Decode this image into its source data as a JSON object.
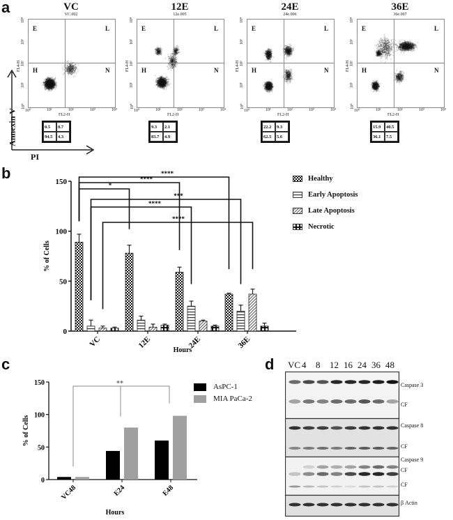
{
  "panels": {
    "a": {
      "label": "a",
      "y_axis_label": "Annexin V",
      "x_axis_label": "PI",
      "quadrant_labels": {
        "top_left": "E",
        "top_right": "L",
        "bottom_left": "H",
        "bottom_right": "N"
      },
      "axis_names": {
        "x": "FL2-H",
        "y": "FL4-H"
      },
      "ticks": [
        "10⁰",
        "10¹",
        "10²",
        "10³",
        "10⁴"
      ],
      "plots": [
        {
          "title": "VC",
          "sample": "VC.002",
          "quadrants": {
            "E": "0.5",
            "L": "0.7",
            "H": "94.5",
            "N": "4.3"
          }
        },
        {
          "title": "12E",
          "sample": "12e.005",
          "quadrants": {
            "E": "9.3",
            "L": "2.1",
            "H": "83.7",
            "N": "4.9"
          }
        },
        {
          "title": "24E",
          "sample": "24e.006",
          "quadrants": {
            "E": "22.2",
            "L": "9.3",
            "H": "62.5",
            "N": "5.6"
          }
        },
        {
          "title": "36E",
          "sample": "36e.007",
          "quadrants": {
            "E": "15.9",
            "L": "40.5",
            "H": "36.1",
            "N": "7.5"
          }
        }
      ]
    },
    "b": {
      "label": "b"
    },
    "c": {
      "label": "c"
    },
    "d": {
      "label": "d",
      "lanes": [
        "VC",
        "4",
        "8",
        "12",
        "16",
        "24",
        "36",
        "48"
      ],
      "band_labels": [
        "Caspase 3",
        "CF",
        "Caspase 8",
        "CF",
        "Caspase 9",
        "CF",
        "CF",
        "β Actin"
      ]
    }
  },
  "chart_data": [
    {
      "panel": "b",
      "type": "bar",
      "title": "",
      "xlabel": "Hours",
      "ylabel": "% of Cells",
      "categories": [
        "VC",
        "12E",
        "24E",
        "36E"
      ],
      "ylim": [
        0,
        150
      ],
      "yticks": [
        0,
        50,
        100,
        150
      ],
      "grid": false,
      "legend_position": "right",
      "series": [
        {
          "name": "Healthy",
          "values": [
            89,
            78,
            59,
            37
          ],
          "errors": [
            8,
            8,
            5,
            1
          ],
          "pattern": "checker"
        },
        {
          "name": "Early Apoptosis",
          "values": [
            5,
            11,
            25,
            20
          ],
          "errors": [
            6,
            4,
            5,
            6
          ],
          "pattern": "horizontal-stripes"
        },
        {
          "name": "Late Apoptosis",
          "values": [
            3,
            4,
            10,
            37
          ],
          "errors": [
            2,
            3,
            1,
            5
          ],
          "pattern": "diagonal-stripes"
        },
        {
          "name": "Necrotic",
          "values": [
            3,
            6,
            5,
            5
          ],
          "errors": [
            1,
            1,
            1,
            3
          ],
          "pattern": "dots"
        }
      ],
      "significance": [
        {
          "label": "****",
          "from": "VC Healthy",
          "to": "36E Healthy"
        },
        {
          "label": "****",
          "from": "VC Healthy",
          "to": "24E Healthy"
        },
        {
          "label": "*",
          "from": "VC Healthy",
          "to": "12E Healthy"
        },
        {
          "label": "***",
          "from": "VC Early Apoptosis",
          "to": "36E Early Apoptosis"
        },
        {
          "label": "****",
          "from": "VC Early Apoptosis",
          "to": "24E Early Apoptosis"
        },
        {
          "label": "****",
          "from": "VC Late Apoptosis",
          "to": "36E Late Apoptosis"
        }
      ]
    },
    {
      "panel": "c",
      "type": "bar",
      "title": "",
      "xlabel": "Hours",
      "ylabel": "% of Cells",
      "categories": [
        "VC48",
        "E24",
        "E48"
      ],
      "ylim": [
        0,
        150
      ],
      "yticks": [
        0,
        50,
        100,
        150
      ],
      "grid": false,
      "legend_position": "right",
      "series": [
        {
          "name": "AsPC-1",
          "values": [
            4,
            44,
            60
          ],
          "color": "#000000"
        },
        {
          "name": "MIA PaCa-2",
          "values": [
            4,
            80,
            98
          ],
          "color": "#a0a0a0"
        }
      ],
      "significance": [
        {
          "label": "**",
          "from": "VC48",
          "to": [
            "E24",
            "E48"
          ]
        }
      ]
    }
  ]
}
